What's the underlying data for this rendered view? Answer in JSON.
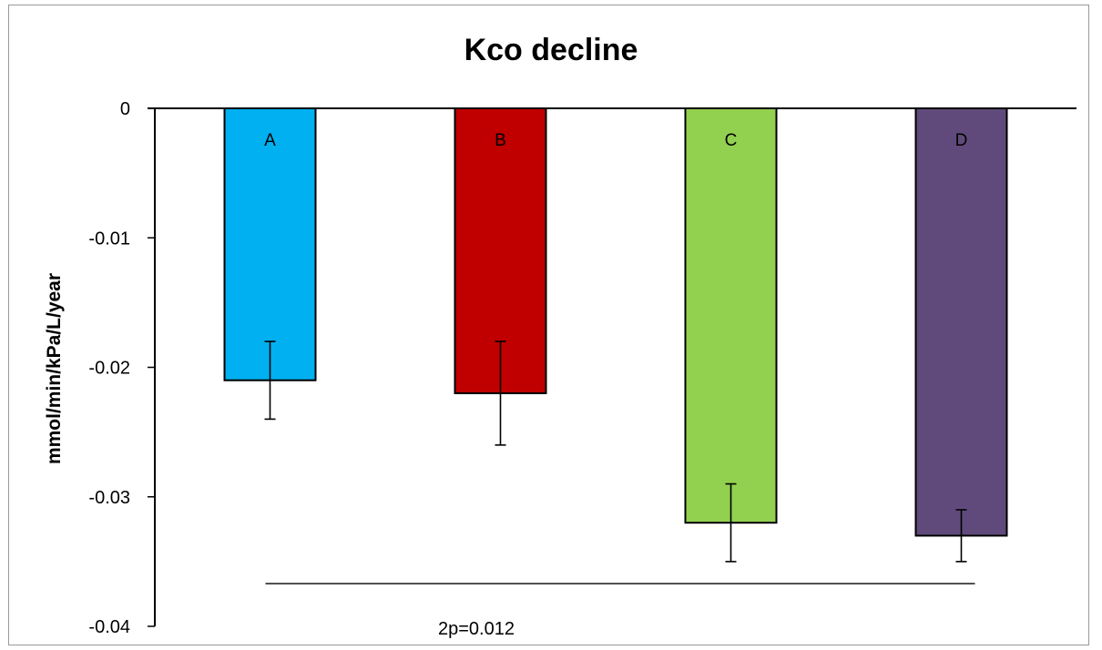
{
  "chart_data": {
    "type": "bar",
    "title": "Kco decline",
    "xlabel": "",
    "ylabel": "mmol/min/kPa/L/year",
    "ylim": [
      -0.04,
      0
    ],
    "yticks": [
      0,
      -0.01,
      -0.02,
      -0.03,
      -0.04
    ],
    "ytick_labels": [
      "0",
      "-0.01",
      "-0.02",
      "-0.03",
      "-0.04"
    ],
    "categories": [
      "A",
      "B",
      "C",
      "D"
    ],
    "values": [
      -0.021,
      -0.022,
      -0.032,
      -0.033
    ],
    "error_low": [
      -0.024,
      -0.026,
      -0.035,
      -0.035
    ],
    "error_high": [
      -0.018,
      -0.018,
      -0.029,
      -0.031
    ],
    "colors": [
      "#00b0f0",
      "#c00000",
      "#92d050",
      "#604a7b"
    ],
    "annotation": {
      "text": "2p=0.012",
      "spans": [
        "A",
        "D"
      ],
      "y": -0.0367
    },
    "grid": false,
    "legend": "none"
  }
}
